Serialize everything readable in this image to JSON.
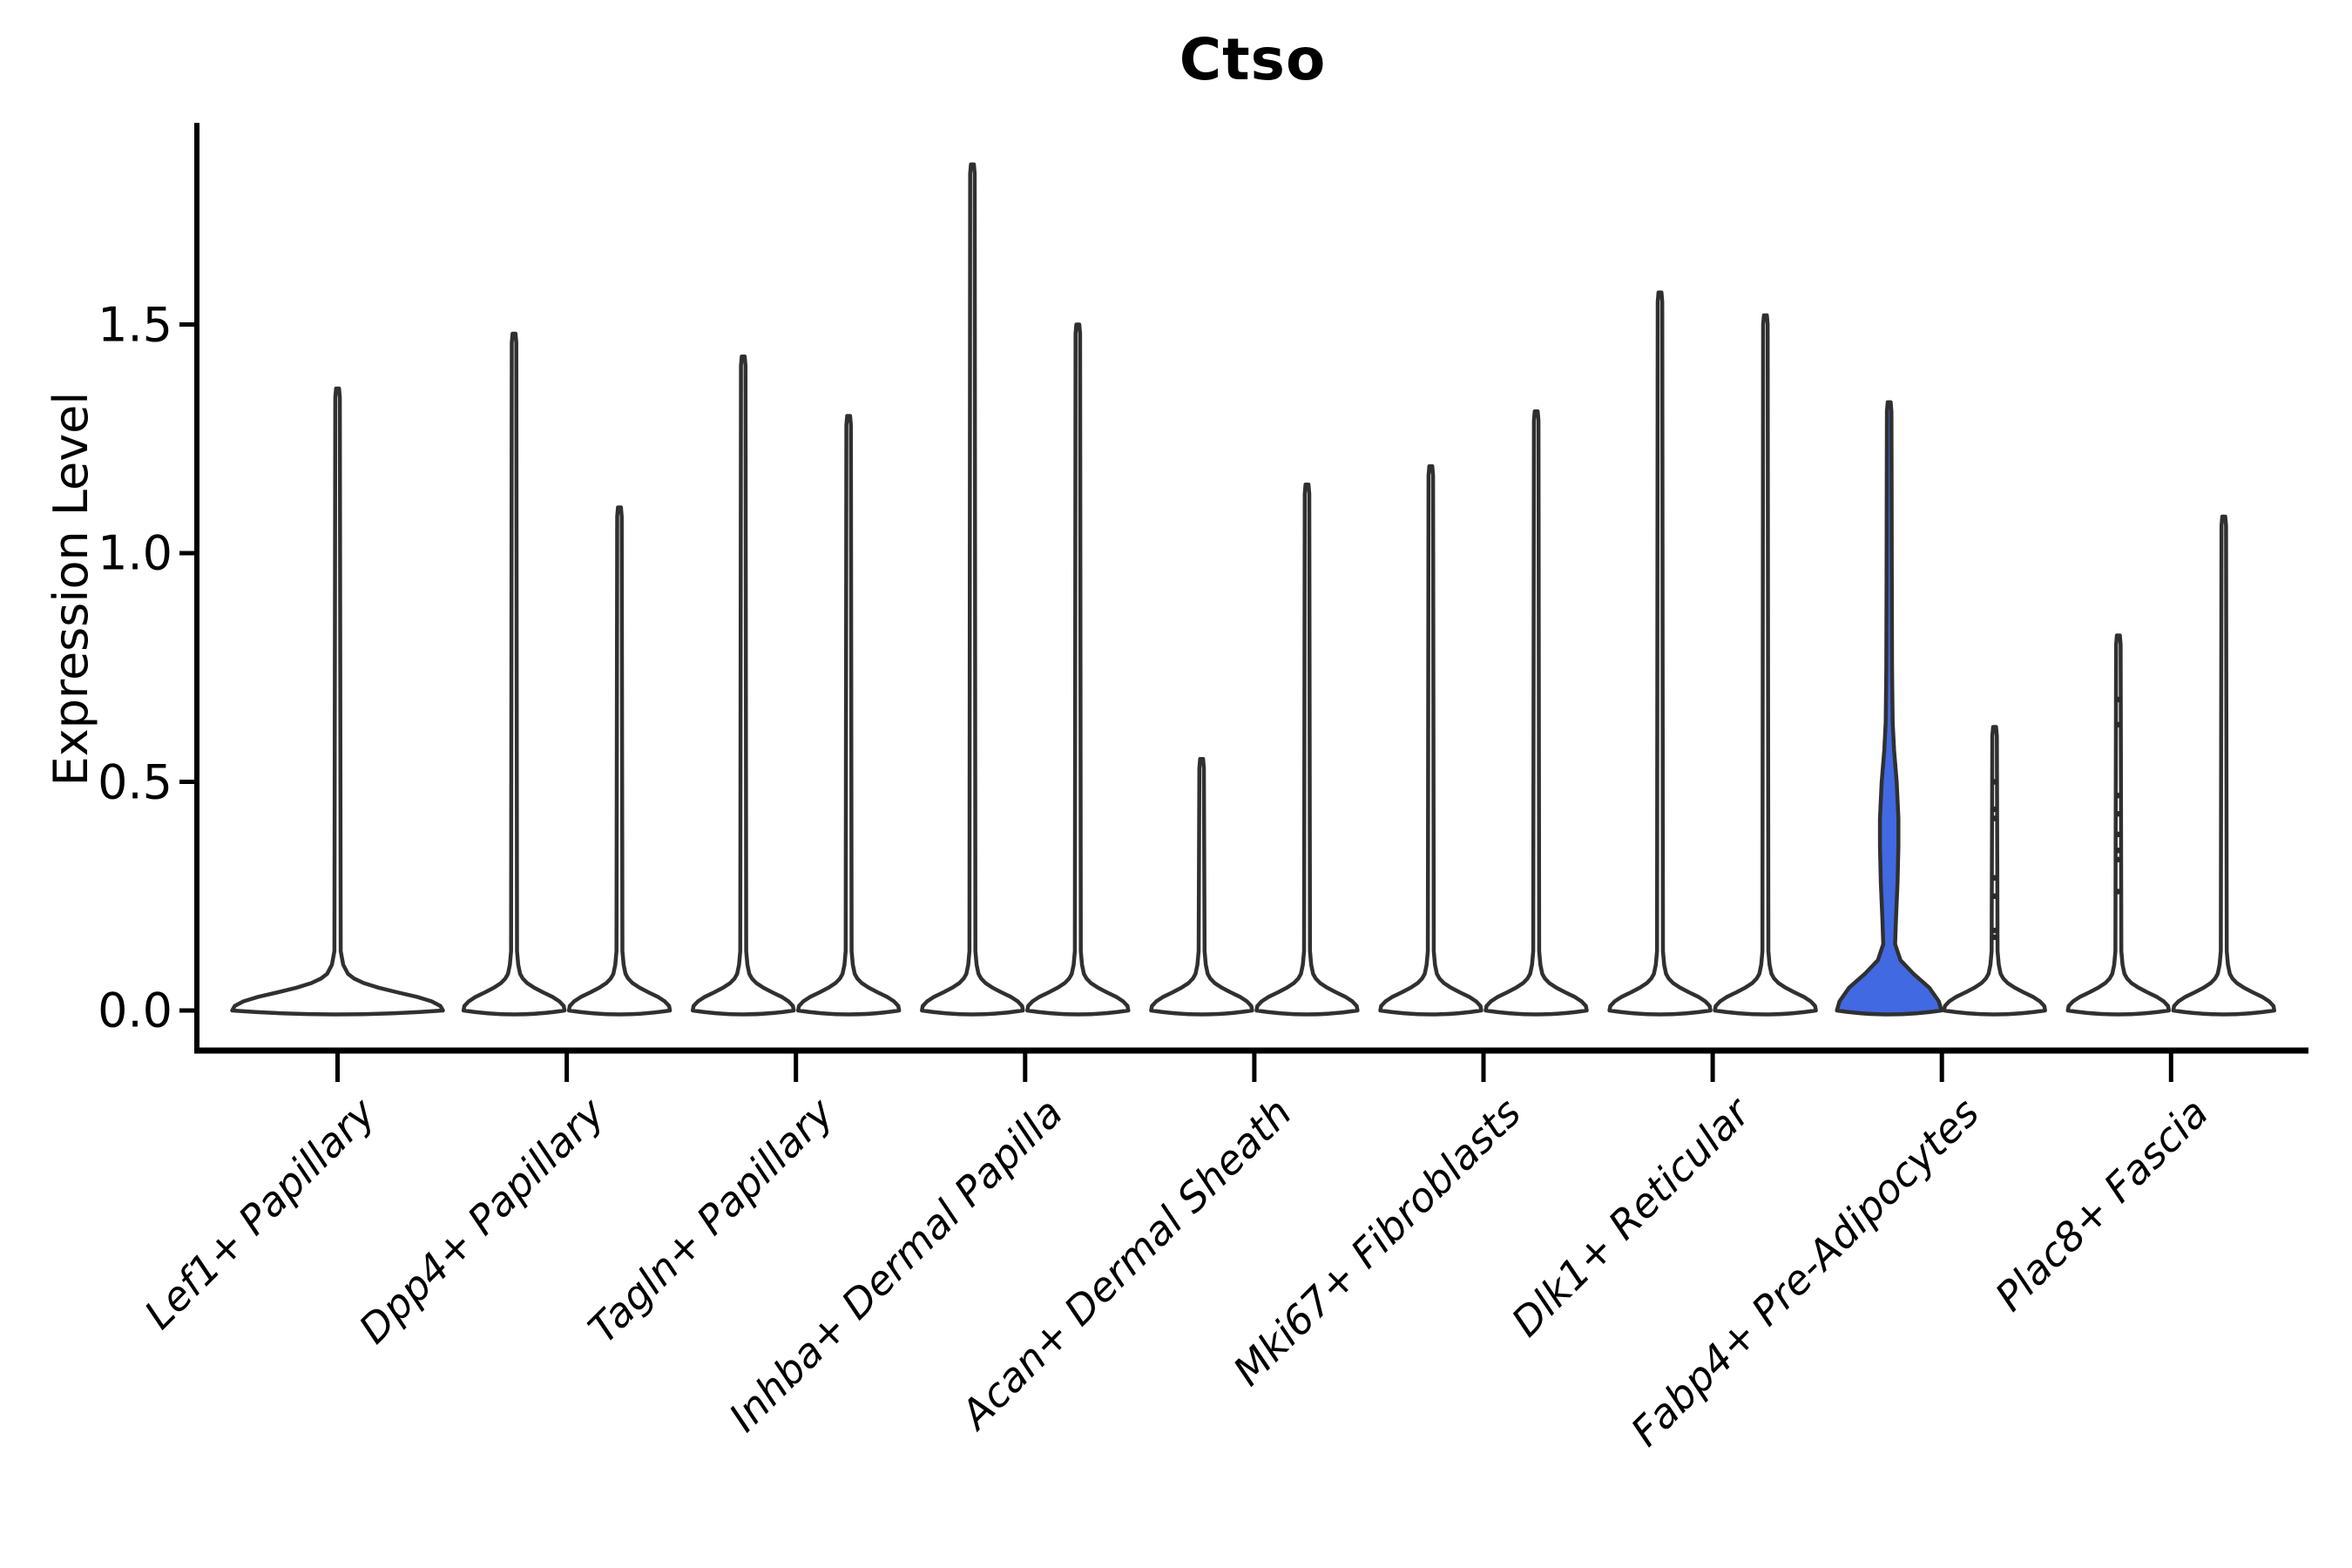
{
  "page": {
    "background_color": "#ffffff"
  },
  "chart_data": {
    "type": "violin",
    "title": "Ctso",
    "xlabel": "",
    "ylabel": "Expression Level",
    "ylim": [
      -0.08,
      1.94
    ],
    "grid": false,
    "legend": null,
    "ytick_labels": [
      "0.0",
      "0.5",
      "1.0",
      "1.5"
    ],
    "ytick_values": [
      0.0,
      0.5,
      1.0,
      1.5
    ],
    "axis_color": "#000000",
    "outline_color": "#303030",
    "default_fill": "#ffffff",
    "highlight_fill": "#4169E1",
    "point_color": "#2a2a2a",
    "groups_per_category": 2,
    "categories": [
      {
        "label": "Lef1+ Papillary",
        "violins": [
          {
            "group": 1,
            "max": 1.36,
            "offset": 0,
            "shape": "wide",
            "fill": "#ffffff",
            "points": []
          }
        ]
      },
      {
        "label": "Dpp4+ Papillary",
        "violins": [
          {
            "group": 1,
            "max": 1.48,
            "offset": -1,
            "shape": "spike",
            "fill": "#ffffff",
            "points": []
          },
          {
            "group": 2,
            "max": 1.1,
            "offset": 1,
            "shape": "spike",
            "fill": "#ffffff",
            "points": []
          }
        ]
      },
      {
        "label": "Tagln+ Papillary",
        "violins": [
          {
            "group": 1,
            "max": 1.43,
            "offset": -1,
            "shape": "spike",
            "fill": "#ffffff",
            "points": []
          },
          {
            "group": 2,
            "max": 1.3,
            "offset": 1,
            "shape": "spike",
            "fill": "#ffffff",
            "points": []
          }
        ]
      },
      {
        "label": "Inhba+ Dermal Papilla",
        "violins": [
          {
            "group": 1,
            "max": 1.85,
            "offset": -1,
            "shape": "spike",
            "fill": "#ffffff",
            "points": []
          },
          {
            "group": 2,
            "max": 1.5,
            "offset": 1,
            "shape": "spike",
            "fill": "#ffffff",
            "points": []
          }
        ]
      },
      {
        "label": "Acan+ Dermal Sheath",
        "violins": [
          {
            "group": 1,
            "max": 0.55,
            "offset": -1,
            "shape": "spike",
            "fill": "#ffffff",
            "points": []
          },
          {
            "group": 2,
            "max": 1.15,
            "offset": 1,
            "shape": "spike",
            "fill": "#ffffff",
            "points": []
          }
        ]
      },
      {
        "label": "Mki67+ Fibroblasts",
        "violins": [
          {
            "group": 1,
            "max": 1.19,
            "offset": -1,
            "shape": "spike",
            "fill": "#ffffff",
            "points": []
          },
          {
            "group": 2,
            "max": 1.31,
            "offset": 1,
            "shape": "spike",
            "fill": "#ffffff",
            "points": []
          }
        ]
      },
      {
        "label": "Dlk1+ Reticular",
        "violins": [
          {
            "group": 1,
            "max": 1.57,
            "offset": -1,
            "shape": "spike",
            "fill": "#ffffff",
            "points": []
          },
          {
            "group": 2,
            "max": 1.52,
            "offset": 1,
            "shape": "spike",
            "fill": "#ffffff",
            "points": []
          }
        ]
      },
      {
        "label": "Fabp4+ Pre-Adipocytes",
        "violins": [
          {
            "group": 1,
            "max": 1.33,
            "offset": -1,
            "shape": "bulged",
            "fill": "#4169E1",
            "bulge_peak_value": 0.4,
            "bulge_span": [
              0.17,
              0.6
            ],
            "points": []
          },
          {
            "group": 2,
            "max": 0.62,
            "offset": 1,
            "shape": "spike",
            "fill": "#ffffff",
            "points": [
              0.5,
              0.44,
              0.42,
              0.29,
              0.25,
              0.175,
              0.16
            ]
          }
        ]
      },
      {
        "label": "Plac8+ Fascia",
        "violins": [
          {
            "group": 1,
            "max": 0.82,
            "offset": -1,
            "shape": "spike",
            "fill": "#ffffff",
            "points": [
              0.68,
              0.625,
              0.47,
              0.43,
              0.385,
              0.35,
              0.33,
              0.26
            ]
          },
          {
            "group": 2,
            "max": 1.08,
            "offset": 1,
            "shape": "spike",
            "fill": "#ffffff",
            "points": []
          }
        ]
      }
    ]
  }
}
